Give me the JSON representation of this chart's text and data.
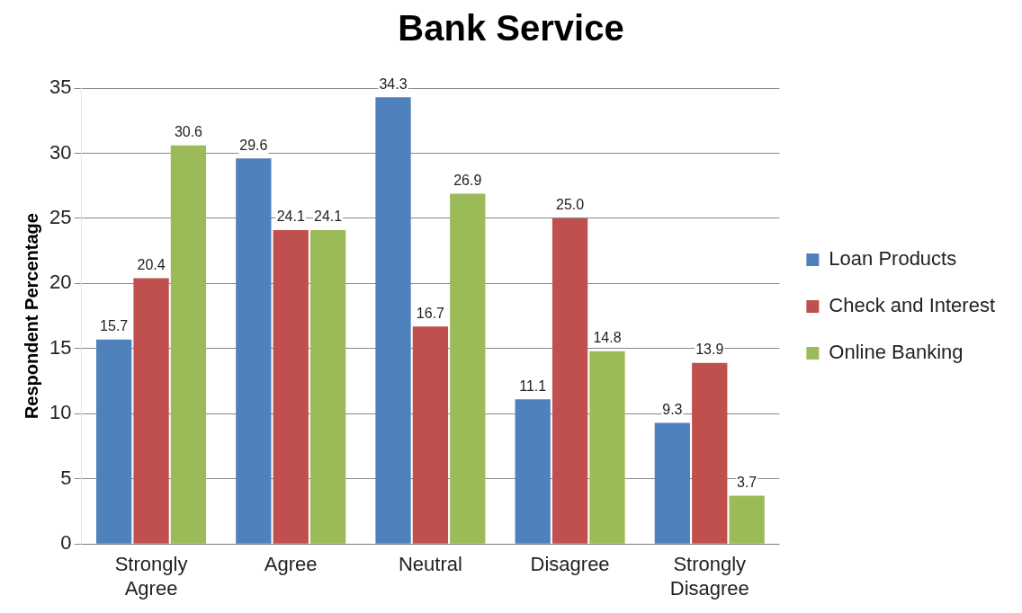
{
  "chart_data": {
    "type": "bar",
    "title": "Bank Service",
    "ylabel": "Respondent Percentage",
    "categories": [
      "Strongly Agree",
      "Agree",
      "Neutral",
      "Disagree",
      "Strongly Disagree"
    ],
    "series": [
      {
        "name": "Loan Products",
        "color": "#4f81bd",
        "values": [
          15.7,
          29.6,
          34.3,
          11.1,
          9.3
        ],
        "value_labels": [
          "15.7",
          "29.6",
          "34.3",
          "11.1",
          "9.3"
        ]
      },
      {
        "name": "Check and Interest",
        "color": "#c0504d",
        "values": [
          20.4,
          24.1,
          16.7,
          25.0,
          13.9
        ],
        "value_labels": [
          "20.4",
          "24.1",
          "16.7",
          "25.0",
          "13.9"
        ]
      },
      {
        "name": "Online Banking",
        "color": "#9bbb59",
        "values": [
          30.6,
          24.1,
          26.9,
          14.8,
          3.7
        ],
        "value_labels": [
          "30.6",
          "24.1",
          "26.9",
          "14.8",
          "3.7"
        ]
      }
    ],
    "ylim": [
      0,
      35
    ],
    "yticks": [
      0,
      5,
      10,
      15,
      20,
      25,
      30,
      35
    ],
    "grid": "y",
    "legend": "right"
  }
}
